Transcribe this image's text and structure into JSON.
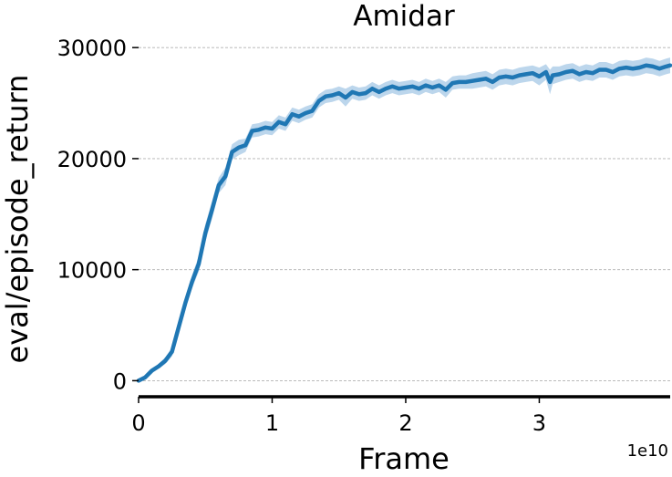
{
  "chart_data": {
    "type": "line",
    "title": "Amidar",
    "xlabel": "Frame",
    "ylabel": "eval/episode_return",
    "x_offset_text": "1e10",
    "xlim": [
      0,
      3.98
    ],
    "ylim": [
      -1200,
      31000
    ],
    "x_ticks": [
      0,
      1,
      2,
      3
    ],
    "x_tick_labels": [
      "0",
      "1",
      "2",
      "3"
    ],
    "y_ticks": [
      0,
      10000,
      20000,
      30000
    ],
    "y_tick_labels": [
      "0",
      "10000",
      "20000",
      "30000"
    ],
    "grid": "horizontal dashed",
    "colors": {
      "line": "#1f77b4",
      "band": "#a6c8e5",
      "spine": "#000000"
    },
    "series": [
      {
        "x": [
          0,
          0.05,
          0.1,
          0.15,
          0.2,
          0.25,
          0.3,
          0.35,
          0.4,
          0.45,
          0.5,
          0.55,
          0.6,
          0.65,
          0.7,
          0.75,
          0.8,
          0.85,
          0.9,
          0.95,
          1.0,
          1.05,
          1.1,
          1.15,
          1.2,
          1.25,
          1.3,
          1.35,
          1.4,
          1.45,
          1.5,
          1.55,
          1.6,
          1.65,
          1.7,
          1.75,
          1.8,
          1.85,
          1.9,
          1.95,
          2.0,
          2.05,
          2.1,
          2.15,
          2.2,
          2.25,
          2.3,
          2.35,
          2.4,
          2.45,
          2.5,
          2.55,
          2.6,
          2.65,
          2.7,
          2.75,
          2.8,
          2.85,
          2.9,
          2.95,
          3.0,
          3.05,
          3.08,
          3.1,
          3.15,
          3.2,
          3.25,
          3.3,
          3.35,
          3.4,
          3.45,
          3.5,
          3.55,
          3.6,
          3.65,
          3.7,
          3.75,
          3.8,
          3.85,
          3.9,
          3.95,
          3.98
        ],
        "values": [
          0,
          300,
          900,
          1300,
          1800,
          2600,
          4800,
          7000,
          8900,
          10500,
          13300,
          15400,
          17600,
          18400,
          20600,
          21000,
          21200,
          22500,
          22600,
          22800,
          22700,
          23300,
          23100,
          24000,
          23800,
          24100,
          24300,
          25200,
          25600,
          25700,
          25900,
          25500,
          26000,
          25800,
          25900,
          26300,
          26000,
          26300,
          26500,
          26300,
          26400,
          26500,
          26300,
          26600,
          26400,
          26600,
          26200,
          26800,
          26900,
          26900,
          27000,
          27100,
          27200,
          26900,
          27300,
          27400,
          27300,
          27500,
          27600,
          27700,
          27400,
          27800,
          26900,
          27500,
          27600,
          27800,
          27900,
          27600,
          27800,
          27700,
          28000,
          28000,
          27800,
          28100,
          28200,
          28100,
          28200,
          28400,
          28300,
          28100,
          28300,
          28400
        ],
        "lower": [
          0,
          200,
          700,
          1100,
          1500,
          2200,
          4300,
          6500,
          8300,
          9800,
          12500,
          14600,
          16900,
          17600,
          19900,
          20300,
          20600,
          21900,
          22000,
          22200,
          22100,
          22700,
          22500,
          23400,
          23200,
          23500,
          23700,
          24600,
          25000,
          25100,
          25300,
          24700,
          25400,
          25200,
          25300,
          25700,
          25400,
          25700,
          25900,
          25700,
          25800,
          25900,
          25700,
          26000,
          25800,
          26000,
          25500,
          26200,
          26300,
          26300,
          26300,
          26400,
          26500,
          26200,
          26600,
          26700,
          26600,
          26800,
          26900,
          27000,
          26600,
          27100,
          25800,
          26700,
          26900,
          27100,
          27200,
          26900,
          27100,
          27000,
          27300,
          27300,
          27100,
          27400,
          27500,
          27400,
          27500,
          27700,
          27600,
          27400,
          27600,
          27700
        ],
        "upper": [
          0,
          400,
          1100,
          1500,
          2100,
          3000,
          5300,
          7500,
          9500,
          11200,
          14100,
          16200,
          18300,
          19200,
          21300,
          21700,
          21800,
          23100,
          23200,
          23400,
          23300,
          23900,
          23700,
          24600,
          24400,
          24700,
          24900,
          25800,
          26200,
          26300,
          26500,
          26300,
          26600,
          26400,
          26500,
          26900,
          26600,
          26900,
          27100,
          26900,
          27000,
          27100,
          26900,
          27200,
          27000,
          27200,
          26900,
          27400,
          27500,
          27500,
          27700,
          27800,
          27900,
          27600,
          28000,
          28100,
          28000,
          28200,
          28300,
          28400,
          28200,
          28500,
          28000,
          28300,
          28300,
          28500,
          28600,
          28300,
          28500,
          28400,
          28700,
          28700,
          28500,
          28800,
          28900,
          28800,
          28900,
          29100,
          29000,
          28800,
          29000,
          29100
        ]
      }
    ]
  }
}
